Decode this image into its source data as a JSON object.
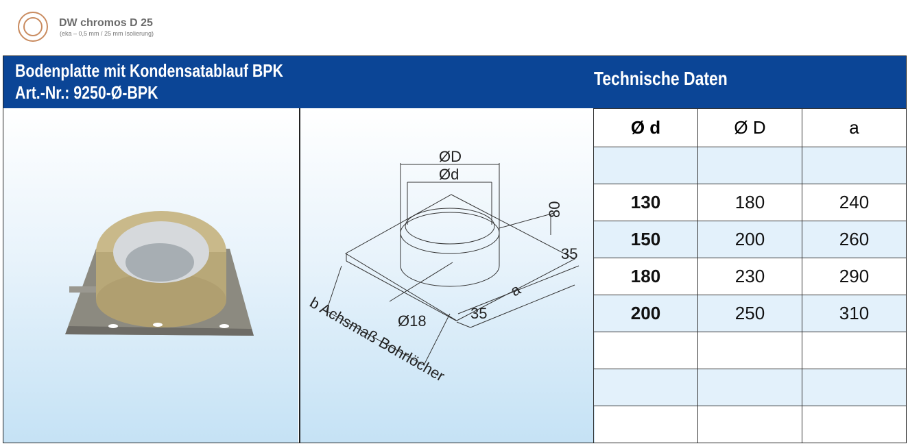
{
  "brand": {
    "name": "DW chromos D 25",
    "subtitle": "(eka – 0,5 mm / 25 mm Isolierung)"
  },
  "header": {
    "title_line1": "Bodenplatte mit Kondensatablauf  BPK",
    "title_line2": "Art.-Nr.: 9250-Ø-BPK",
    "tech_title": "Technische Daten"
  },
  "drawing": {
    "dD": "ØD",
    "dd": "Ød",
    "h80": "80",
    "e35a": "35",
    "e35b": "35",
    "a": "a",
    "d18": "Ø18",
    "b": "b Achsmaß Bohrlöcher"
  },
  "table": {
    "headers": [
      "Ø d",
      "Ø D",
      "a"
    ],
    "rows": [
      [
        "",
        "",
        ""
      ],
      [
        "130",
        "180",
        "240"
      ],
      [
        "150",
        "200",
        "260"
      ],
      [
        "180",
        "230",
        "290"
      ],
      [
        "200",
        "250",
        "310"
      ],
      [
        "",
        "",
        ""
      ],
      [
        "",
        "",
        ""
      ],
      [
        "",
        "",
        ""
      ]
    ]
  },
  "colors": {
    "header": "#0b4596",
    "row_alt": "#e3f1fb"
  }
}
